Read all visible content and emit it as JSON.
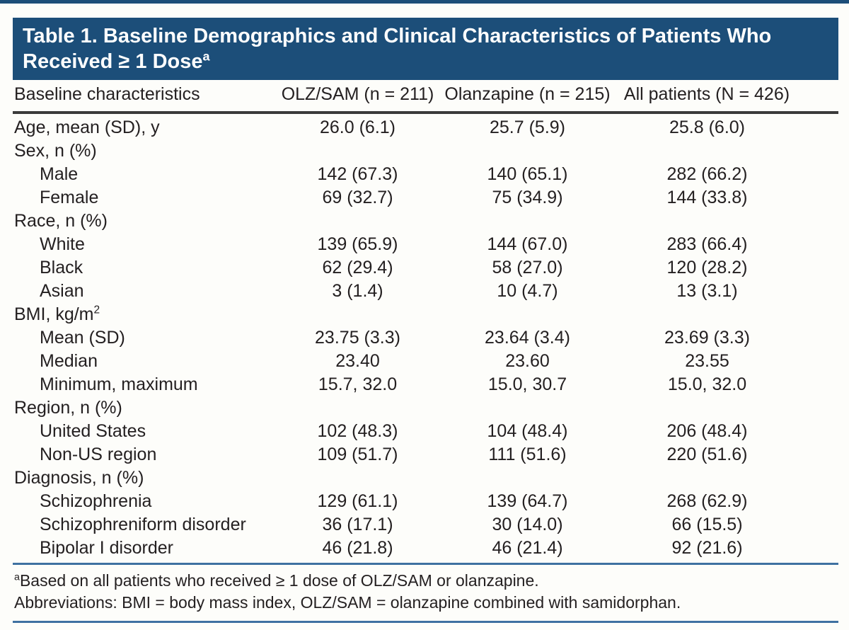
{
  "colors": {
    "header_bg": "#1c4e79",
    "rule_blue": "#3f71a1",
    "rule_dark": "#3b3b3b",
    "text": "#242021",
    "title_text": "#ffffff",
    "page_bg": "#fdfdfa"
  },
  "table": {
    "title_line1": "Table 1. Baseline Demographics and Clinical Characteristics of Patients Who",
    "title_line2": "Received ≥ 1 Dose",
    "title_sup": "a",
    "columns": [
      "Baseline characteristics",
      "OLZ/SAM (n = 211)",
      "Olanzapine (n = 215)",
      "All patients (N = 426)"
    ],
    "rows": [
      {
        "label": "Age, mean (SD), y",
        "indent": false,
        "values": [
          "26.0 (6.1)",
          "25.7 (5.9)",
          "25.8 (6.0)"
        ]
      },
      {
        "label": "Sex, n (%)",
        "indent": false,
        "values": [
          "",
          "",
          ""
        ]
      },
      {
        "label": "Male",
        "indent": true,
        "values": [
          "142 (67.3)",
          "140 (65.1)",
          "282 (66.2)"
        ]
      },
      {
        "label": "Female",
        "indent": true,
        "values": [
          "69 (32.7)",
          "75 (34.9)",
          "144 (33.8)"
        ]
      },
      {
        "label": "Race, n (%)",
        "indent": false,
        "values": [
          "",
          "",
          ""
        ]
      },
      {
        "label": "White",
        "indent": true,
        "values": [
          "139 (65.9)",
          "144 (67.0)",
          "283 (66.4)"
        ]
      },
      {
        "label": "Black",
        "indent": true,
        "values": [
          "62 (29.4)",
          "58 (27.0)",
          "120 (28.2)"
        ]
      },
      {
        "label": "Asian",
        "indent": true,
        "values": [
          "3 (1.4)",
          "10 (4.7)",
          "13 (3.1)"
        ]
      },
      {
        "label": "BMI, kg/m",
        "label_sup": "2",
        "indent": false,
        "values": [
          "",
          "",
          ""
        ]
      },
      {
        "label": "Mean (SD)",
        "indent": true,
        "values": [
          "23.75 (3.3)",
          "23.64 (3.4)",
          "23.69 (3.3)"
        ]
      },
      {
        "label": "Median",
        "indent": true,
        "values": [
          "23.40",
          "23.60",
          "23.55"
        ]
      },
      {
        "label": "Minimum, maximum",
        "indent": true,
        "values": [
          "15.7, 32.0",
          "15.0, 30.7",
          "15.0, 32.0"
        ]
      },
      {
        "label": "Region, n (%)",
        "indent": false,
        "values": [
          "",
          "",
          ""
        ]
      },
      {
        "label": "United States",
        "indent": true,
        "values": [
          "102 (48.3)",
          "104 (48.4)",
          "206 (48.4)"
        ]
      },
      {
        "label": "Non-US region",
        "indent": true,
        "values": [
          "109 (51.7)",
          "111 (51.6)",
          "220 (51.6)"
        ]
      },
      {
        "label": "Diagnosis, n (%)",
        "indent": false,
        "values": [
          "",
          "",
          ""
        ]
      },
      {
        "label": "Schizophrenia",
        "indent": true,
        "values": [
          "129 (61.1)",
          "139 (64.7)",
          "268 (62.9)"
        ]
      },
      {
        "label": "Schizophreniform disorder",
        "indent": true,
        "values": [
          "36 (17.1)",
          "30 (14.0)",
          "66 (15.5)"
        ]
      },
      {
        "label": "Bipolar I disorder",
        "indent": true,
        "values": [
          "46 (21.8)",
          "46 (21.4)",
          "92 (21.6)"
        ]
      }
    ],
    "footnotes": [
      {
        "sup": "a",
        "text": "Based on all patients who received ≥ 1 dose of OLZ/SAM or olanzapine."
      },
      {
        "sup": "",
        "text": "Abbreviations: BMI = body mass index, OLZ/SAM = olanzapine combined with samidorphan."
      }
    ]
  }
}
